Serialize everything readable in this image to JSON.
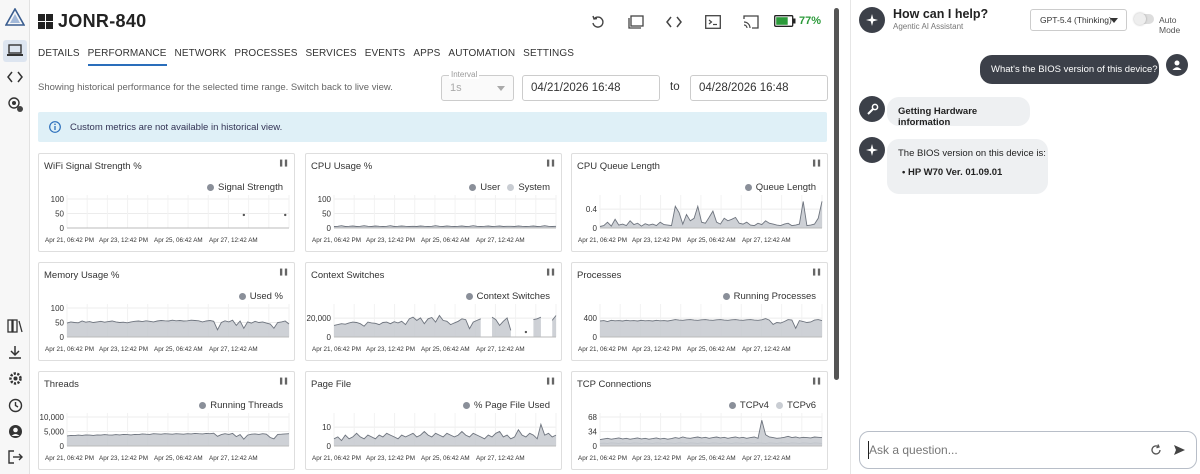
{
  "device": {
    "name": "JONR-840",
    "battery_pct": "77%"
  },
  "tabs": [
    {
      "label": "DETAILS",
      "active": false
    },
    {
      "label": "PERFORMANCE",
      "active": true
    },
    {
      "label": "NETWORK",
      "active": false
    },
    {
      "label": "PROCESSES",
      "active": false
    },
    {
      "label": "SERVICES",
      "active": false
    },
    {
      "label": "EVENTS",
      "active": false
    },
    {
      "label": "APPS",
      "active": false
    },
    {
      "label": "AUTOMATION",
      "active": false
    },
    {
      "label": "SETTINGS",
      "active": false
    }
  ],
  "history": {
    "note": "Showing historical performance for the selected time range. Switch back to live view.",
    "interval_label": "Interval",
    "interval_value": "1s",
    "from": "04/21/2026 16:48",
    "to_label": "to",
    "to": "04/28/2026 16:48",
    "info": "Custom metrics are not available in historical view."
  },
  "x_ticks": [
    "Apr 21, 06:42 PM",
    "Apr 23, 12:42 PM",
    "Apr 25, 06:42 AM",
    "Apr 27, 12:42 AM"
  ],
  "colors": {
    "series_primary": "#8a8f99",
    "series_secondary": "#c9cdd3",
    "area_fill": "#c5c9cf",
    "accent": "#2a6ebb",
    "battery": "#2b9a3a"
  },
  "chart_data": [
    {
      "type": "area",
      "title": "WiFi Signal Strength %",
      "series": [
        {
          "name": "Signal Strength",
          "values": [
            null,
            null,
            null,
            null,
            null,
            null,
            null,
            null,
            null,
            null,
            null,
            null,
            null,
            null,
            null,
            null,
            null,
            null,
            null,
            null,
            null,
            null,
            null,
            null,
            null,
            null,
            null,
            null,
            null,
            null,
            null,
            null,
            null,
            null,
            null,
            null,
            null,
            null,
            null,
            null,
            null,
            null,
            null,
            null,
            null,
            null,
            null,
            45,
            null,
            null,
            null,
            null,
            null,
            null,
            null,
            null,
            null,
            null,
            45,
            null
          ]
        }
      ],
      "y_ticks": [
        "100",
        "50",
        "0"
      ],
      "ylim": [
        0,
        100
      ]
    },
    {
      "type": "area",
      "title": "CPU Usage %",
      "series": [
        {
          "name": "User",
          "values": [
            5,
            6,
            8,
            5,
            6,
            7,
            5,
            6,
            8,
            6,
            5,
            7,
            6,
            5,
            6,
            8,
            5,
            6,
            7,
            6,
            5,
            6,
            5,
            7,
            6,
            5,
            6,
            8,
            6,
            5,
            7,
            6,
            5,
            6,
            7,
            5,
            6,
            8,
            6,
            5,
            6,
            7,
            5,
            6,
            7,
            5,
            6,
            6,
            5,
            7,
            6,
            5,
            6,
            7,
            5,
            6,
            8,
            6,
            5,
            6
          ]
        },
        {
          "name": "System",
          "values": [
            2,
            3,
            2,
            3,
            2,
            2,
            3,
            2,
            3,
            2,
            2,
            3,
            2,
            3,
            2,
            2,
            3,
            2,
            3,
            2,
            2,
            3,
            2,
            3,
            2,
            2,
            3,
            2,
            3,
            2,
            2,
            3,
            2,
            3,
            2,
            2,
            3,
            2,
            3,
            2,
            2,
            3,
            2,
            3,
            2,
            2,
            3,
            2,
            3,
            2,
            2,
            3,
            2,
            3,
            2,
            2,
            3,
            2,
            3,
            2
          ]
        }
      ],
      "y_ticks": [
        "100",
        "50",
        "0"
      ],
      "ylim": [
        0,
        100
      ]
    },
    {
      "type": "area",
      "title": "CPU Queue Length",
      "series": [
        {
          "name": "Queue Length",
          "values": [
            0.03,
            0.05,
            0.12,
            0.04,
            0.18,
            0.06,
            0.08,
            0.05,
            0.15,
            0.07,
            0.1,
            0.04,
            0.09,
            0.06,
            0.08,
            0.05,
            0.12,
            0.07,
            0.06,
            0.05,
            0.45,
            0.32,
            0.08,
            0.28,
            0.15,
            0.2,
            0.45,
            0.12,
            0.1,
            0.22,
            0.35,
            0.12,
            0.08,
            0.2,
            0.15,
            0.18,
            0.22,
            0.1,
            0.08,
            0.12,
            0.06,
            0.05,
            0.1,
            0.07,
            0.15,
            0.1,
            0.08,
            0.06,
            0.05,
            0.08,
            0.1,
            0.05,
            0.06,
            0.08,
            0.55,
            0.05,
            0.06,
            0.08,
            0.2,
            0.55
          ]
        }
      ],
      "y_ticks": [
        "0.4",
        "0"
      ],
      "ylim": [
        0,
        0.6
      ]
    },
    {
      "type": "area",
      "title": "Memory Usage %",
      "series": [
        {
          "name": "Used %",
          "values": [
            48,
            52,
            50,
            49,
            55,
            51,
            53,
            50,
            52,
            54,
            51,
            53,
            55,
            52,
            50,
            51,
            49,
            52,
            54,
            55,
            53,
            56,
            54,
            52,
            55,
            57,
            56,
            55,
            58,
            56,
            57,
            55,
            56,
            58,
            57,
            56,
            52,
            55,
            57,
            54,
            25,
            50,
            56,
            52,
            58,
            40,
            55,
            30,
            52,
            48,
            54,
            50,
            52,
            48,
            45,
            30,
            50,
            52,
            55,
            45
          ]
        }
      ],
      "y_ticks": [
        "100",
        "50",
        "0"
      ],
      "ylim": [
        0,
        100
      ]
    },
    {
      "type": "area",
      "title": "Context Switches",
      "series": [
        {
          "name": "Context Switches",
          "values": [
            14000,
            15000,
            16000,
            15500,
            17000,
            18000,
            17500,
            16000,
            13000,
            18000,
            17000,
            16500,
            15000,
            17500,
            18000,
            16000,
            18500,
            17000,
            19000,
            15000,
            22000,
            24000,
            20000,
            23000,
            16000,
            22000,
            23500,
            18000,
            26000,
            20000,
            19000,
            15000,
            17000,
            19000,
            22000,
            21000,
            10000,
            18000,
            20000,
            22000,
            null,
            null,
            24000,
            21000,
            14000,
            19000,
            23000,
            8000,
            null,
            null,
            null,
            6000,
            null,
            21000,
            22000,
            24000,
            null,
            null,
            20000,
            26000
          ]
        }
      ],
      "y_ticks": [
        "20,000",
        "0"
      ],
      "ylim": [
        0,
        35000
      ]
    },
    {
      "type": "area",
      "title": "Processes",
      "series": [
        {
          "name": "Running Processes",
          "values": [
            330,
            340,
            320,
            345,
            335,
            340,
            330,
            345,
            335,
            340,
            330,
            345,
            335,
            340,
            330,
            345,
            335,
            340,
            330,
            345,
            360,
            350,
            345,
            355,
            360,
            350,
            345,
            355,
            360,
            350,
            345,
            355,
            360,
            350,
            345,
            355,
            360,
            350,
            345,
            355,
            360,
            350,
            345,
            355,
            380,
            350,
            260,
            300,
            290,
            320,
            360,
            350,
            180,
            340,
            320,
            300,
            310,
            350,
            360,
            340
          ]
        }
      ],
      "y_ticks": [
        "400",
        "0"
      ],
      "ylim": [
        0,
        600
      ]
    },
    {
      "type": "area",
      "title": "Threads",
      "series": [
        {
          "name": "Running Threads",
          "values": [
            4200,
            4400,
            4300,
            4500,
            4400,
            4600,
            4500,
            4400,
            4600,
            4500,
            4700,
            4600,
            4500,
            4700,
            4600,
            4800,
            4700,
            4600,
            4800,
            4700,
            5000,
            4900,
            4800,
            5100,
            5000,
            4900,
            5100,
            5000,
            4900,
            5100,
            5000,
            4900,
            5100,
            5000,
            5200,
            5100,
            5000,
            5200,
            5100,
            5300,
            4000,
            4700,
            5100,
            4800,
            5200,
            3900,
            4700,
            2800,
            4500,
            4900,
            5000,
            4800,
            5100,
            4900,
            3500,
            3000,
            4800,
            4900,
            5000,
            5100
          ]
        }
      ],
      "y_ticks": [
        "10,000",
        "5,000",
        "0"
      ],
      "ylim": [
        0,
        12000
      ]
    },
    {
      "type": "area",
      "title": "Page File",
      "series": [
        {
          "name": "% Page File Used",
          "values": [
            4,
            5,
            3,
            6,
            4,
            5,
            7,
            5,
            4,
            6,
            5,
            4,
            6,
            5,
            7,
            6,
            5,
            4,
            6,
            5,
            6,
            7,
            5,
            6,
            8,
            6,
            5,
            7,
            6,
            5,
            7,
            6,
            5,
            6,
            8,
            6,
            5,
            7,
            6,
            5,
            4,
            6,
            5,
            7,
            8,
            5,
            6,
            4,
            5,
            9,
            6,
            5,
            7,
            6,
            4,
            12,
            6,
            7,
            5,
            6
          ]
        }
      ],
      "y_ticks": [
        "10",
        "0"
      ],
      "ylim": [
        0,
        16
      ]
    },
    {
      "type": "area",
      "title": "TCP Connections",
      "series": [
        {
          "name": "TCPv4",
          "values": [
            20,
            22,
            24,
            21,
            23,
            25,
            22,
            24,
            21,
            23,
            25,
            22,
            24,
            21,
            23,
            25,
            22,
            24,
            21,
            23,
            26,
            24,
            28,
            25,
            24,
            26,
            28,
            25,
            27,
            24,
            26,
            28,
            25,
            27,
            24,
            26,
            28,
            25,
            27,
            24,
            26,
            28,
            24,
            80,
            35,
            28,
            26,
            24,
            25,
            27,
            30,
            26,
            28,
            25,
            27,
            26,
            25,
            28,
            27,
            26
          ]
        },
        {
          "name": "TCPv6",
          "values": [
            8,
            9,
            8,
            10,
            9,
            8,
            10,
            9,
            8,
            10,
            9,
            8,
            10,
            9,
            8,
            10,
            9,
            8,
            10,
            9,
            8,
            10,
            9,
            8,
            10,
            9,
            8,
            10,
            9,
            8,
            10,
            9,
            8,
            10,
            9,
            8,
            10,
            9,
            8,
            10,
            9,
            8,
            10,
            9,
            8,
            10,
            9,
            8,
            10,
            9,
            8,
            10,
            9,
            8,
            10,
            9,
            8,
            10,
            9,
            8
          ]
        }
      ],
      "y_ticks": [
        "68",
        "34",
        "0"
      ],
      "ylim": [
        0,
        90
      ]
    }
  ],
  "assistant": {
    "title": "How can I help?",
    "subtitle": "Agentic AI Assistant",
    "model": "GPT-5.4 (Thinking)",
    "auto_mode_label": "Auto Mode",
    "user_message": "What's the BIOS version of this device?",
    "tool_status": "Getting Hardware information",
    "answer_intro": "The BIOS version on this device is:",
    "answer_item": "HP W70 Ver. 01.09.01",
    "input_placeholder": "Ask a question..."
  }
}
